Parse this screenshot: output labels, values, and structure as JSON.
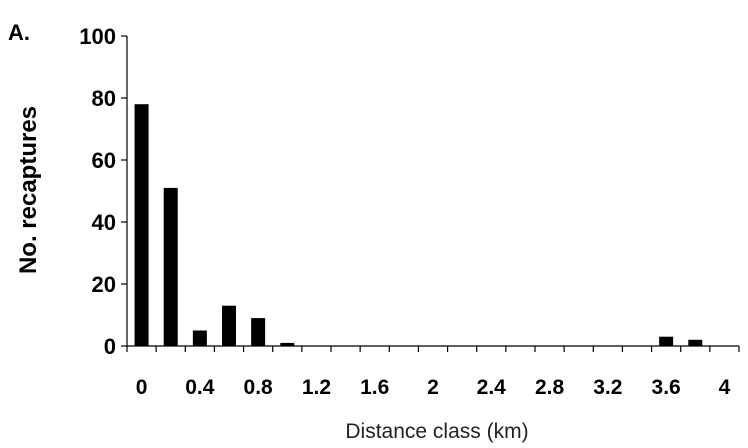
{
  "panel_label": "A.",
  "chart_data": {
    "type": "bar",
    "xlabel": "Distance class (km)",
    "ylabel": "No. recaptures",
    "ylim": [
      0,
      100
    ],
    "yticks": [
      "0",
      "20",
      "40",
      "60",
      "80",
      "100"
    ],
    "xtick_labels": [
      "0",
      "0.4",
      "0.8",
      "1.2",
      "1.6",
      "2",
      "2.4",
      "2.8",
      "3.2",
      "3.6",
      "4"
    ],
    "categories": [
      "0",
      "0.2",
      "0.4",
      "0.6",
      "0.8",
      "1.0",
      "1.2",
      "1.4",
      "1.6",
      "1.8",
      "2.0",
      "2.2",
      "2.4",
      "2.6",
      "2.8",
      "3.0",
      "3.2",
      "3.4",
      "3.6",
      "3.8",
      "4.0"
    ],
    "values": [
      78,
      51,
      5,
      13,
      9,
      1,
      0,
      0,
      0,
      0,
      0,
      0,
      0,
      0,
      0,
      0,
      0,
      0,
      3,
      2,
      0
    ],
    "bar_color": "#000000",
    "grid": false,
    "legend": "none"
  }
}
